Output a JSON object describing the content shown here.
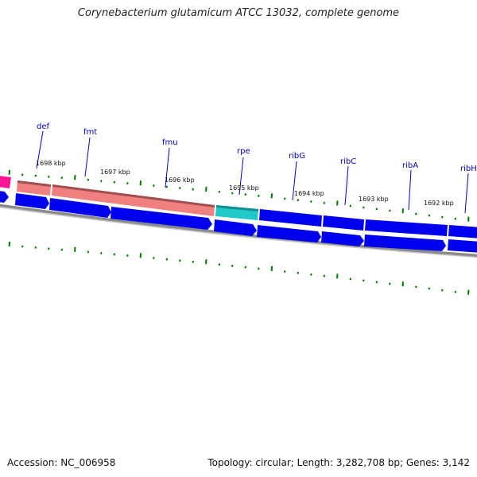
{
  "title": "Corynebacterium glutamicum ATCC 13032, complete genome",
  "footer": {
    "accession": "Accession: NC_006958",
    "summary": "Topology: circular; Length: 3,282,708 bp; Genes: 3,142"
  },
  "genes": [
    {
      "name": "def"
    },
    {
      "name": "fmt"
    },
    {
      "name": "fmu"
    },
    {
      "name": "rpe"
    },
    {
      "name": "ribG"
    },
    {
      "name": "ribC"
    },
    {
      "name": "ribA"
    },
    {
      "name": "ribH"
    }
  ],
  "scale_labels": [
    "1698 kbp",
    "1697 kbp",
    "1696 kbp",
    "1695 kbp",
    "1694 kbp",
    "1693 kbp",
    "1692 kbp"
  ],
  "colors": {
    "cds": "#0000ee",
    "rna_a": "#f08080",
    "rna_b": "#20c8c8",
    "magenta": "#ff1493",
    "backbone": "#808080",
    "ticks": "#007700",
    "label": "#0000cc"
  }
}
